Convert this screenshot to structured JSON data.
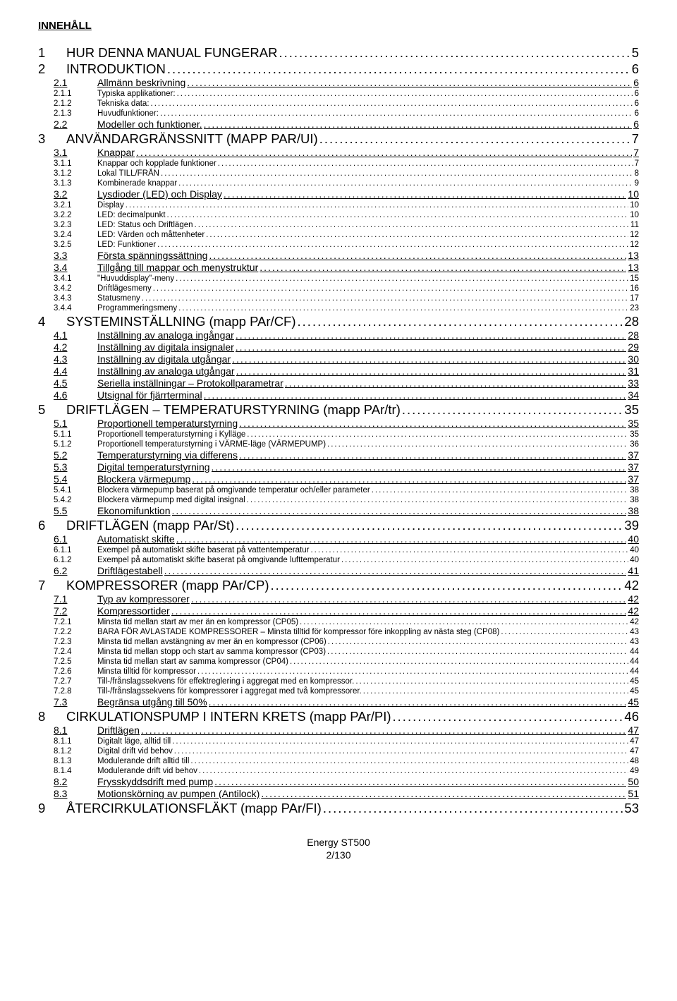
{
  "title": "INNEHÅLL",
  "footer_line1": "Energy ST500",
  "footer_line2": "2/130",
  "toc": [
    {
      "level": 1,
      "num": "1",
      "text": "HUR DENNA MANUAL FUNGERAR",
      "page": "5"
    },
    {
      "level": 1,
      "num": "2",
      "text": "INTRODUKTION",
      "page": "6"
    },
    {
      "level": 2,
      "num": "2.1",
      "text": "Allmänn beskrivning",
      "page": "6"
    },
    {
      "level": 3,
      "num": "2.1.1",
      "text": "Typiska applikationer:",
      "page": "6"
    },
    {
      "level": 3,
      "num": "2.1.2",
      "text": "Tekniska data:",
      "page": "6"
    },
    {
      "level": 3,
      "num": "2.1.3",
      "text": "Huvudfunktioner:",
      "page": "6"
    },
    {
      "level": 2,
      "num": "2.2",
      "text": "Modeller och funktioner.",
      "page": "6"
    },
    {
      "level": 1,
      "num": "3",
      "text": "ANVÄNDARGRÄNSSNITT (MAPP PAR/UI)",
      "page": "7"
    },
    {
      "level": 2,
      "num": "3.1",
      "text": "Knappar",
      "page": "7"
    },
    {
      "level": 3,
      "num": "3.1.1",
      "text": "Knappar och kopplade funktioner",
      "page": "7"
    },
    {
      "level": 3,
      "num": "3.1.2",
      "text": "Lokal TILL/FRÅN",
      "page": "8"
    },
    {
      "level": 3,
      "num": "3.1.3",
      "text": "Kombinerade knappar",
      "page": "9"
    },
    {
      "level": 2,
      "num": "3.2",
      "text": "Lysdioder (LED) och Display",
      "page": "10"
    },
    {
      "level": 3,
      "num": "3.2.1",
      "text": "Display",
      "page": "10"
    },
    {
      "level": 3,
      "num": "3.2.2",
      "text": "LED: decimalpunkt",
      "page": "10"
    },
    {
      "level": 3,
      "num": "3.2.3",
      "text": "LED: Status och Driftlägen",
      "page": "11"
    },
    {
      "level": 3,
      "num": "3.2.4",
      "text": "LED: Värden och måttenheter",
      "page": "12"
    },
    {
      "level": 3,
      "num": "3.2.5",
      "text": "LED: Funktioner",
      "page": "12"
    },
    {
      "level": 2,
      "num": "3.3",
      "text": "Första spänningssättning",
      "page": "13"
    },
    {
      "level": 2,
      "num": "3.4",
      "text": "Tillgång till mappar och menystruktur",
      "page": "13"
    },
    {
      "level": 3,
      "num": "3.4.1",
      "text": "\"Huvuddisplay\"-meny",
      "page": "15"
    },
    {
      "level": 3,
      "num": "3.4.2",
      "text": "Driftlägesmeny",
      "page": "16"
    },
    {
      "level": 3,
      "num": "3.4.3",
      "text": "Statusmeny",
      "page": "17"
    },
    {
      "level": 3,
      "num": "3.4.4",
      "text": "Programmeringsmeny",
      "page": "23"
    },
    {
      "level": 1,
      "num": "4",
      "text": "SYSTEMINSTÄLLNING (mapp PAr/CF)",
      "page": "28"
    },
    {
      "level": 2,
      "num": "4.1",
      "text": "Inställning av analoga ingångar",
      "page": "28"
    },
    {
      "level": 2,
      "num": "4.2",
      "text": "Inställning av digitala insignaler",
      "page": "29"
    },
    {
      "level": 2,
      "num": "4.3",
      "text": "Inställning av digitala utgångar",
      "page": "30"
    },
    {
      "level": 2,
      "num": "4.4",
      "text": "Inställning av analoga utgångar",
      "page": "31"
    },
    {
      "level": 2,
      "num": "4.5",
      "text": "Seriella inställningar – Protokollparametrar",
      "page": "33"
    },
    {
      "level": 2,
      "num": "4.6",
      "text": "Utsignal för  fjärrterminal",
      "page": "34"
    },
    {
      "level": 1,
      "num": "5",
      "text": "DRIFTLÄGEN – TEMPERATURSTYRNING (mapp PAr/tr)",
      "page": "35"
    },
    {
      "level": 2,
      "num": "5.1",
      "text": "Proportionell temperaturstyrning",
      "page": "35"
    },
    {
      "level": 3,
      "num": "5.1.1",
      "text": "Proportionell temperaturstyrning i Kylläge",
      "page": "35"
    },
    {
      "level": 3,
      "num": "5.1.2",
      "text": "Proportionell temperaturstyrning i VÄRME-läge (VÄRMEPUMP)",
      "page": "36"
    },
    {
      "level": 2,
      "num": "5.2",
      "text": "Temperaturstyrning via differens",
      "page": "37"
    },
    {
      "level": 2,
      "num": "5.3",
      "text": "Digital temperaturstyrning",
      "page": "37"
    },
    {
      "level": 2,
      "num": "5.4",
      "text": "Blockera värmepump",
      "page": "37"
    },
    {
      "level": 3,
      "num": "5.4.1",
      "text": "Blockera värmepump baserat på omgivande temperatur och/eller parameter",
      "page": "38"
    },
    {
      "level": 3,
      "num": "5.4.2",
      "text": "Blockera värmepump med digital insignal",
      "page": "38"
    },
    {
      "level": 2,
      "num": "5.5",
      "text": "Ekonomifunktion",
      "page": "38"
    },
    {
      "level": 1,
      "num": "6",
      "text": "DRIFTLÄGEN (mapp PAr/St)",
      "page": "39"
    },
    {
      "level": 2,
      "num": "6.1",
      "text": "Automatiskt skifte",
      "page": "40"
    },
    {
      "level": 3,
      "num": "6.1.1",
      "text": "Exempel på automatiskt skifte baserat på vattentemperatur",
      "page": "40"
    },
    {
      "level": 3,
      "num": "6.1.2",
      "text": "Exempel på automatiskt skifte baserat på omgivande lufttemperatur",
      "page": "40"
    },
    {
      "level": 2,
      "num": "6.2",
      "text": "Driftlägestabell",
      "page": "41"
    },
    {
      "level": 1,
      "num": "7",
      "text": "KOMPRESSORER (mapp PAr/CP)",
      "page": "42"
    },
    {
      "level": 2,
      "num": "7.1",
      "text": "Typ av kompressorer",
      "page": "42"
    },
    {
      "level": 2,
      "num": "7.2",
      "text": "Kompressortider",
      "page": "42"
    },
    {
      "level": 3,
      "num": "7.2.1",
      "text": "Minsta tid mellan start av mer än en kompressor (CP05)",
      "page": "42"
    },
    {
      "level": 3,
      "num": "7.2.2",
      "text": "BARA FÖR AVLASTADE KOMPRESSORER – Minsta tilltid för kompressor före inkoppling av nästa steg (CP08)",
      "page": "43"
    },
    {
      "level": 3,
      "num": "7.2.3",
      "text": "Minsta tid mellan avstängning av mer än en kompressor (CP06)",
      "page": "43"
    },
    {
      "level": 3,
      "num": "7.2.4",
      "text": "Minsta tid mellan stopp och start av samma kompressor (CP03)",
      "page": "44"
    },
    {
      "level": 3,
      "num": "7.2.5",
      "text": "Minsta tid mellan start av samma kompressor (CP04)",
      "page": "44"
    },
    {
      "level": 3,
      "num": "7.2.6",
      "text": "Minsta tilltid för kompressor",
      "page": "44"
    },
    {
      "level": 3,
      "num": "7.2.7",
      "text": "Till-/frånslagssekvens för effektreglering i aggregat med en kompressor.",
      "page": "45"
    },
    {
      "level": 3,
      "num": "7.2.8",
      "text": "Till-/frånslagssekvens för kompressorer i aggregat med två kompressorer.",
      "page": "45"
    },
    {
      "level": 2,
      "num": "7.3",
      "text": "Begränsa utgång till 50%",
      "page": "45"
    },
    {
      "level": 1,
      "num": "8",
      "text": "CIRKULATIONSPUMP I INTERN KRETS (mapp PAr/PI)",
      "page": "46"
    },
    {
      "level": 2,
      "num": "8.1",
      "text": "Driftlägen",
      "page": "47"
    },
    {
      "level": 3,
      "num": "8.1.1",
      "text": "Digitalt läge, alltid till",
      "page": "47"
    },
    {
      "level": 3,
      "num": "8.1.2",
      "text": "Digital drift vid behov",
      "page": "47"
    },
    {
      "level": 3,
      "num": "8.1.3",
      "text": "Modulerande drift alltid till",
      "page": "48"
    },
    {
      "level": 3,
      "num": "8.1.4",
      "text": "Modulerande drift vid behov",
      "page": "49"
    },
    {
      "level": 2,
      "num": "8.2",
      "text": "Frysskyddsdrift med pump",
      "page": "50"
    },
    {
      "level": 2,
      "num": "8.3",
      "text": "Motionskörning av pumpen (Antilock)",
      "page": "51"
    },
    {
      "level": 1,
      "num": "9",
      "text": "ÅTERCIRKULATIONSFLÄKT (mapp PAr/FI)",
      "page": "53"
    }
  ]
}
